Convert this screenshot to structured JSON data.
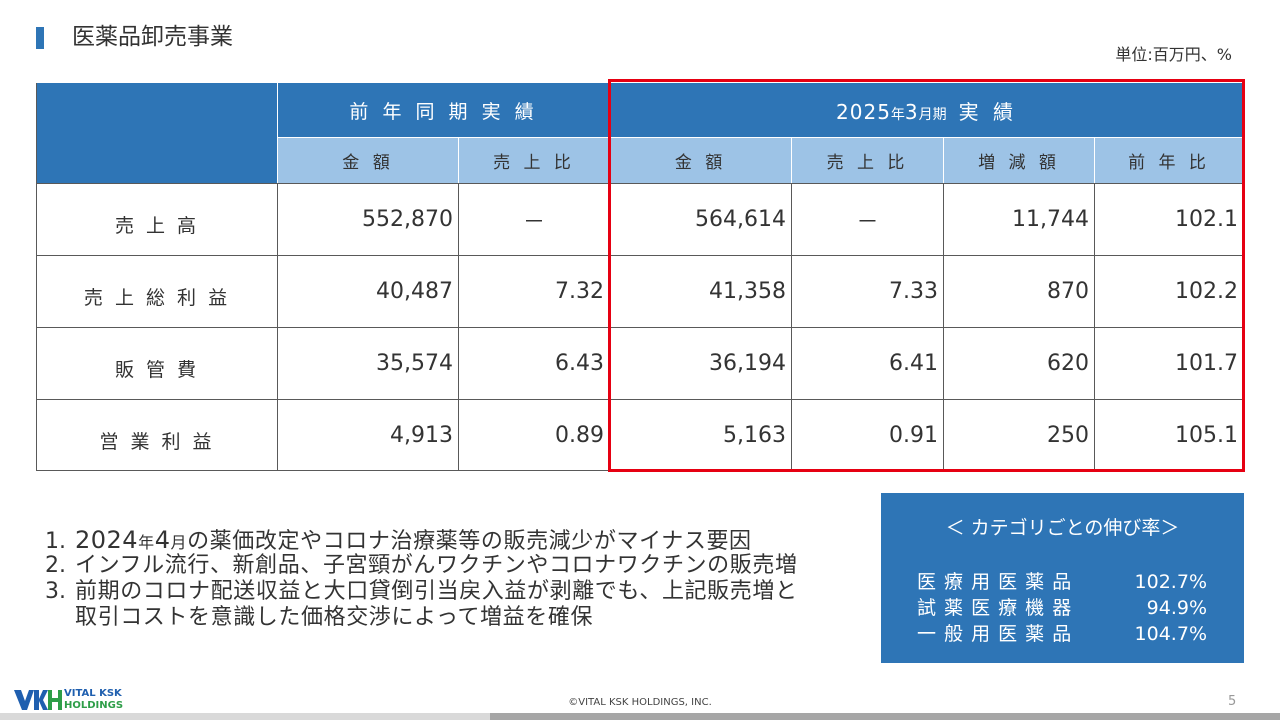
{
  "slide": {
    "title": "医薬品卸売事業",
    "unit": "単位:百万円、%",
    "page_number": "5",
    "copyright": "©VITAL KSK HOLDINGS, INC."
  },
  "logo": {
    "line1": "VITAL KSK",
    "line2": "HOLDINGS"
  },
  "colors": {
    "accent": "#2E75B6",
    "subheader": "#9DC3E6",
    "highlight": "#E60012",
    "logo_blue": "#1F5FAF",
    "logo_green": "#2E9E48"
  },
  "table": {
    "prior_header": "前 年 同 期 実 績",
    "current_header": {
      "year": "2025",
      "year_suffix": "年",
      "month": "3",
      "month_suffix": "月期",
      "label": "実 績"
    },
    "columns": [
      "金 額",
      "売 上 比",
      "金 額",
      "売 上 比",
      "増 減 額",
      "前 年 比"
    ],
    "rows": [
      {
        "label": "売 上 高",
        "prior_amount": "552,870",
        "prior_ratio": "－",
        "amount": "564,614",
        "ratio": "－",
        "change": "11,744",
        "yoy": "102.1"
      },
      {
        "label": "売 上 総 利 益",
        "prior_amount": "40,487",
        "prior_ratio": "7.32",
        "amount": "41,358",
        "ratio": "7.33",
        "change": "870",
        "yoy": "102.2"
      },
      {
        "label": "販 管 費",
        "prior_amount": "35,574",
        "prior_ratio": "6.43",
        "amount": "36,194",
        "ratio": "6.41",
        "change": "620",
        "yoy": "101.7"
      },
      {
        "label": "営 業 利 益",
        "prior_amount": "4,913",
        "prior_ratio": "0.89",
        "amount": "5,163",
        "ratio": "0.91",
        "change": "250",
        "yoy": "105.1"
      }
    ]
  },
  "notes": [
    {
      "number": "1.",
      "segments": [
        "2024",
        "年",
        "4",
        "月",
        "の薬価改定やコロナ治療薬等の販売減少がマイナス要因"
      ]
    },
    {
      "number": "2.",
      "lines": [
        "インフル流行、新創品、子宮頸がんワクチンやコロナワクチンの販売増"
      ]
    },
    {
      "number": "3.",
      "lines": [
        "前期のコロナ配送収益と大口貸倒引当戻入益が剥離でも、上記販売増と",
        "取引コストを意識した価格交渉によって増益を確保"
      ]
    }
  ],
  "category_growth": {
    "title": "＜ カテゴリごとの伸び率＞",
    "items": [
      {
        "name": "医 療 用 医 薬 品",
        "rate": "102.7%"
      },
      {
        "name": "試 薬 医 療 機 器",
        "rate": "94.9%"
      },
      {
        "name": "一 般 用 医 薬 品",
        "rate": "104.7%"
      }
    ]
  }
}
